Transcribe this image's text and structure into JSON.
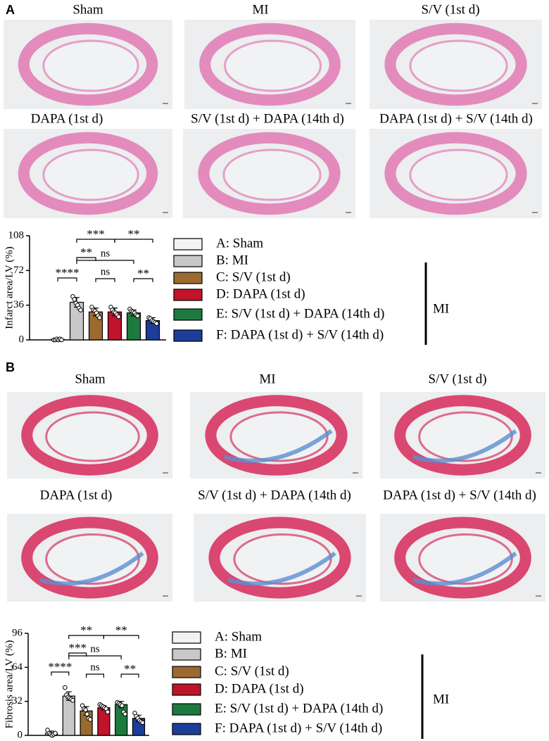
{
  "panels": [
    {
      "label": "A",
      "images": [
        {
          "caption": "Sham"
        },
        {
          "caption": "MI"
        },
        {
          "caption": "S/V (1st d)"
        },
        {
          "caption": "DAPA (1st d)"
        },
        {
          "caption": "S/V (1st d) + DAPA (14th d)"
        },
        {
          "caption": "DAPA (1st d) + S/V (14th d)"
        }
      ]
    },
    {
      "label": "B",
      "images": [
        {
          "caption": "Sham"
        },
        {
          "caption": "MI"
        },
        {
          "caption": "S/V (1st d)"
        },
        {
          "caption": "DAPA (1st d)"
        },
        {
          "caption": "S/V (1st d) + DAPA (14th d)"
        },
        {
          "caption": "DAPA (1st d) + S/V (14th d)"
        }
      ]
    }
  ],
  "chart_data": [
    {
      "type": "bar",
      "ylabel": "Infarct area/LV (%)",
      "categories": [
        "A: Sham",
        "B: MI",
        "C: S/V (1st d)",
        "D: DAPA (1st d)",
        "E: S/V (1st d) + DAPA (14th d)",
        "F: DAPA (1st d) + S/V (14th d)"
      ],
      "colors": [
        "#f2f2f2",
        "#c8c8c8",
        "#9b6a2f",
        "#c0142a",
        "#1d7a3e",
        "#1c3d9a"
      ],
      "values": [
        0.5,
        39,
        29,
        29,
        28,
        20
      ],
      "errors": [
        0.5,
        5,
        4,
        4,
        3,
        3
      ],
      "points": [
        [
          0,
          0,
          1,
          0,
          1,
          0
        ],
        [
          45,
          42,
          38,
          36,
          33,
          31
        ],
        [
          34,
          31,
          30,
          28,
          25,
          23
        ],
        [
          34,
          31,
          29,
          28,
          26,
          24
        ],
        [
          32,
          30,
          29,
          28,
          26,
          25
        ],
        [
          23,
          22,
          20,
          19,
          18,
          17
        ]
      ],
      "ylim": [
        0,
        108
      ],
      "yticks": [
        0,
        36,
        72,
        108
      ],
      "annotations": [
        "***",
        "**",
        "**",
        "ns",
        "****",
        "ns",
        "**"
      ],
      "group_label": "MI"
    },
    {
      "type": "bar",
      "ylabel": "Fibrosis area/LV (%)",
      "categories": [
        "A: Sham",
        "B: MI",
        "C: S/V (1st d)",
        "D: DAPA (1st d)",
        "E: S/V (1st d) + DAPA (14th d)",
        "F: DAPA (1st d) + S/V (14th d)"
      ],
      "colors": [
        "#f2f2f2",
        "#c8c8c8",
        "#9b6a2f",
        "#c0142a",
        "#1d7a3e",
        "#1c3d9a"
      ],
      "values": [
        2,
        37,
        23,
        26,
        29,
        16
      ],
      "errors": [
        2,
        4,
        4,
        2,
        3,
        3
      ],
      "points": [
        [
          5,
          2,
          1,
          0,
          1,
          2
        ],
        [
          45,
          38,
          36,
          35,
          34,
          33
        ],
        [
          28,
          25,
          24,
          20,
          16,
          15
        ],
        [
          29,
          28,
          27,
          26,
          25,
          22
        ],
        [
          31,
          30,
          29,
          28,
          22,
          20
        ],
        [
          21,
          18,
          16,
          14,
          13,
          12
        ]
      ],
      "ylim": [
        0,
        96
      ],
      "yticks": [
        0,
        32,
        64,
        96
      ],
      "annotations": [
        "**",
        "**",
        "***",
        "ns",
        "****",
        "ns",
        "**"
      ],
      "group_label": "MI"
    }
  ]
}
